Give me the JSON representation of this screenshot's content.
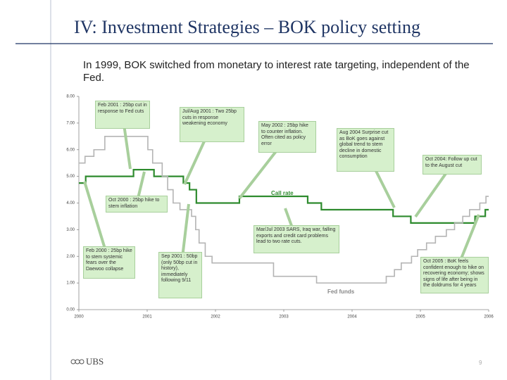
{
  "header": {
    "title": "IV: Investment Strategies – BOK policy setting"
  },
  "subtitle": "In 1999, BOK switched from monetary to interest rate targeting, independent of the Fed.",
  "chart_data": {
    "type": "step",
    "xlim": [
      2000,
      2006
    ],
    "xticks": [
      2000,
      2001,
      2002,
      2003,
      2004,
      2005,
      2006
    ],
    "ylim": [
      0,
      8
    ],
    "yticks": [
      {
        "value": 0,
        "label": "0.00"
      },
      {
        "value": 1,
        "label": "1.00"
      },
      {
        "value": 2,
        "label": "2.00"
      },
      {
        "value": 3,
        "label": "3.00"
      },
      {
        "value": 4,
        "label": "4.00"
      },
      {
        "value": 5,
        "label": "5.00"
      },
      {
        "value": 6,
        "label": "6.00"
      },
      {
        "value": 7,
        "label": "7.00"
      },
      {
        "value": 8,
        "label": "8.00"
      }
    ],
    "series": [
      {
        "name": "Call rate",
        "color": "#2e8b2e",
        "x": [
          2000.0,
          2000.1,
          2000.8,
          2001.1,
          2001.53,
          2001.62,
          2001.72,
          2002.35,
          2003.35,
          2003.55,
          2004.6,
          2004.86,
          2005.8,
          2005.95,
          2006.0
        ],
        "values": [
          4.75,
          5.0,
          5.25,
          5.0,
          4.75,
          4.5,
          4.0,
          4.25,
          4.0,
          3.75,
          3.5,
          3.25,
          3.5,
          3.75,
          3.75
        ]
      },
      {
        "name": "Fed funds",
        "color": "#b4b4b4",
        "x": [
          2000.0,
          2000.09,
          2000.22,
          2000.38,
          2001.01,
          2001.08,
          2001.22,
          2001.3,
          2001.38,
          2001.48,
          2001.65,
          2001.71,
          2001.76,
          2001.85,
          2001.95,
          2002.85,
          2003.48,
          2004.5,
          2004.62,
          2004.72,
          2004.87,
          2004.96,
          2005.09,
          2005.22,
          2005.38,
          2005.5,
          2005.62,
          2005.72,
          2005.87,
          2005.96,
          2006.0
        ],
        "values": [
          5.5,
          5.75,
          6.0,
          6.5,
          6.0,
          5.5,
          5.0,
          4.5,
          4.0,
          3.75,
          3.5,
          3.0,
          2.5,
          2.0,
          1.75,
          1.25,
          1.0,
          1.25,
          1.5,
          1.75,
          2.0,
          2.25,
          2.5,
          2.75,
          3.0,
          3.25,
          3.5,
          3.75,
          4.0,
          4.25,
          4.25
        ]
      }
    ],
    "annotations": [
      "Feb 2001 : 25bp cut in response to Fed cuts",
      "Jul/Aug 2001 : Two 25bp cuts in response weakening economy",
      "May 2002 : 25bp hike to counter inflation. Often cited as policy error",
      "Aug 2004 Surprise cut as BoK goes against global trend to stem decline in domestic consumption",
      "Oct 2004: Follow up cut to the August cut",
      "Oct 2000 : 25bp hike to stem inflation",
      "Mar/Jul 2003 SARS, Iraq war, falling exports and credit card problems lead to two rate cuts.",
      "Feb 2000 : 25bp hike to stem systemic fears over the Daewoo collapse",
      "Sep 2001 : 50bp (only 50bp cut in history), immediately following 9/11",
      "Oct 2005 : BoK feels confident enough to hike on recovering economy; shows signs of life after being in the doldrums for 4 years"
    ]
  },
  "footer": {
    "logo": "UBS",
    "page": "9"
  }
}
